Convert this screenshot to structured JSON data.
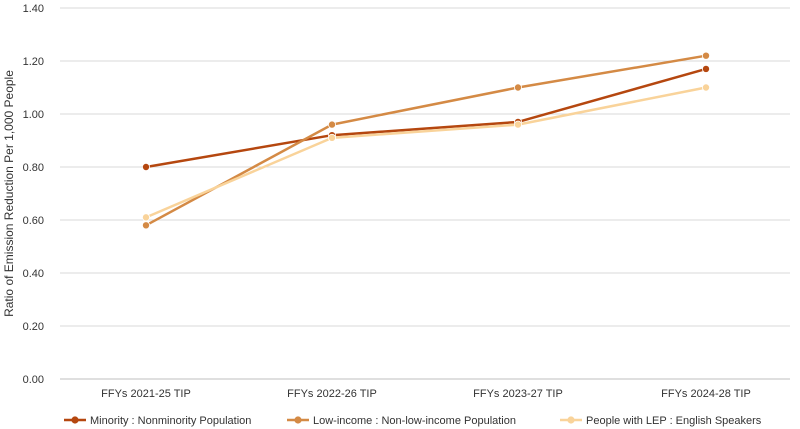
{
  "chart_data": {
    "type": "line",
    "title": "",
    "ylabel": "Ratio of Emission Reduction Per 1,000 People",
    "xlabel": "",
    "categories": [
      "FFYs 2021-25 TIP",
      "FFYs 2022-26 TIP",
      "FFYs 2023-27 TIP",
      "FFYs 2024-28 TIP"
    ],
    "yticks": [
      "0.00",
      "0.20",
      "0.40",
      "0.60",
      "0.80",
      "1.00",
      "1.20",
      "1.40"
    ],
    "ylim": [
      0,
      1.4
    ],
    "grid": true,
    "legend_position": "bottom",
    "series": [
      {
        "name": "Minority : Nonminority Population",
        "color": "#b5470f",
        "values": [
          0.8,
          0.92,
          0.97,
          1.17
        ]
      },
      {
        "name": "Low-income : Non-low-income Population",
        "color": "#d48a45",
        "values": [
          0.58,
          0.96,
          1.1,
          1.22
        ]
      },
      {
        "name": "People with LEP : English Speakers",
        "color": "#f9d39a",
        "values": [
          0.61,
          0.91,
          0.96,
          1.1
        ]
      }
    ]
  }
}
